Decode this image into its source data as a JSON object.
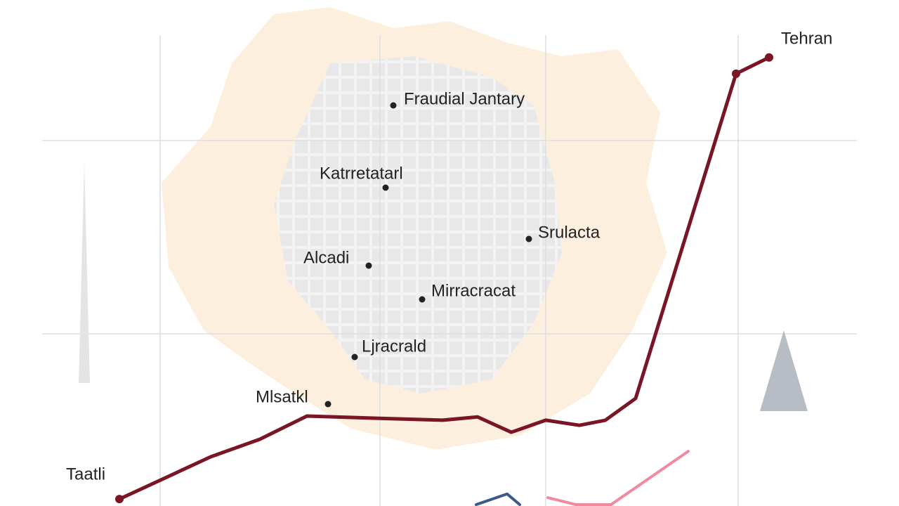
{
  "chart_data": {
    "type": "line",
    "annotations": [
      "Tehran",
      "Fraudial Jantary",
      "Katrretatarl",
      "Srulacta",
      "Alcadi",
      "Mirracracat",
      "Ljracrald",
      "Mlsatkl",
      "Taatli"
    ],
    "xlim": [
      0,
      105
    ],
    "ylim": [
      0,
      100
    ],
    "series": [
      {
        "color": "#7a1526",
        "x": [
          0,
          13,
          20,
          26.7,
          37,
          46,
          51,
          55.8,
          60.7,
          65.5,
          69.2,
          73.5,
          87.8,
          92.5
        ],
        "values": [
          1.5,
          10.6,
          14.4,
          19.4,
          18.9,
          18.5,
          19.2,
          15.9,
          18.5,
          17.4,
          18.5,
          23.2,
          93.2,
          96.7
        ]
      },
      {
        "color": "#f08aa0",
        "x": [
          61,
          65,
          70,
          81
        ],
        "values": [
          1.8,
          0.3,
          0.3,
          11.8
        ]
      },
      {
        "color": "#3b5a85",
        "x": [
          50.8,
          55.2,
          57
        ],
        "values": [
          0.3,
          2.6,
          0.3
        ]
      }
    ]
  }
}
